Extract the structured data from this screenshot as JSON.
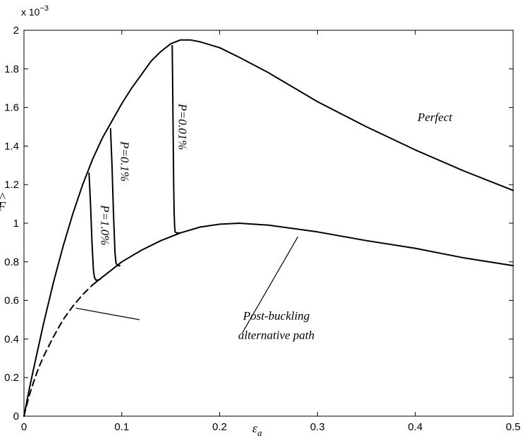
{
  "chart_data": {
    "type": "line",
    "xlabel": "ε",
    "xlabel_sub": "a",
    "ylabel": "F",
    "ylabel_hat": "^",
    "y_multiplier": {
      "base": "x 10",
      "exponent": "−3"
    },
    "xlim": [
      0,
      0.5
    ],
    "ylim": [
      0,
      2
    ],
    "xticks": [
      0,
      0.1,
      0.2,
      0.3,
      0.4,
      0.5
    ],
    "xtick_labels": [
      "0",
      "0.1",
      "0.2",
      "0.3",
      "0.4",
      "0.5"
    ],
    "yticks": [
      0,
      0.2,
      0.4,
      0.6,
      0.8,
      1,
      1.2,
      1.4,
      1.6,
      1.8,
      2
    ],
    "ytick_labels": [
      "0",
      "0.2",
      "0.4",
      "0.6",
      "0.8",
      "1",
      "1.2",
      "1.4",
      "1.6",
      "1.8",
      "2"
    ],
    "grid": false,
    "series": [
      {
        "name": "Perfect",
        "style": "solid",
        "x": [
          0,
          0.005,
          0.01,
          0.02,
          0.03,
          0.04,
          0.05,
          0.06,
          0.07,
          0.08,
          0.09,
          0.1,
          0.11,
          0.12,
          0.13,
          0.14,
          0.15,
          0.16,
          0.17,
          0.18,
          0.2,
          0.22,
          0.25,
          0.3,
          0.35,
          0.4,
          0.45,
          0.5
        ],
        "y": [
          0,
          0.13,
          0.25,
          0.48,
          0.69,
          0.88,
          1.05,
          1.2,
          1.33,
          1.44,
          1.53,
          1.62,
          1.7,
          1.77,
          1.84,
          1.89,
          1.93,
          1.95,
          1.95,
          1.94,
          1.91,
          1.86,
          1.78,
          1.63,
          1.5,
          1.38,
          1.27,
          1.17
        ]
      },
      {
        "name": "Post-buckling alternative path",
        "style": "dashed",
        "x": [
          0,
          0.005,
          0.01,
          0.015,
          0.02,
          0.03,
          0.04,
          0.05,
          0.06,
          0.07
        ],
        "y": [
          0,
          0.1,
          0.18,
          0.25,
          0.31,
          0.41,
          0.5,
          0.57,
          0.63,
          0.68
        ]
      },
      {
        "name": "Post-buckling alternative path",
        "style": "solid",
        "x": [
          0.07,
          0.08,
          0.09,
          0.1,
          0.12,
          0.14,
          0.16,
          0.18,
          0.2,
          0.22,
          0.25,
          0.3,
          0.35,
          0.4,
          0.45,
          0.5
        ],
        "y": [
          0.68,
          0.72,
          0.76,
          0.8,
          0.86,
          0.91,
          0.95,
          0.98,
          0.995,
          1.0,
          0.99,
          0.955,
          0.91,
          0.87,
          0.82,
          0.78
        ]
      },
      {
        "name": "P=1.0%",
        "style": "solid",
        "x": [
          0.0665,
          0.068,
          0.0695,
          0.071,
          0.072,
          0.0735,
          0.075,
          0.078
        ],
        "y": [
          1.26,
          1.1,
          0.9,
          0.76,
          0.72,
          0.705,
          0.705,
          0.71
        ]
      },
      {
        "name": "P=0.1%",
        "style": "solid",
        "x": [
          0.0885,
          0.09,
          0.0915,
          0.093,
          0.094,
          0.0955,
          0.098
        ],
        "y": [
          1.49,
          1.3,
          1.05,
          0.85,
          0.795,
          0.78,
          0.78
        ]
      },
      {
        "name": "P=0.01%",
        "style": "solid",
        "x": [
          0.1515,
          0.152,
          0.1525,
          0.153,
          0.1535,
          0.154,
          0.1545,
          0.156,
          0.159
        ],
        "y": [
          1.92,
          1.7,
          1.45,
          1.2,
          1.05,
          0.98,
          0.955,
          0.95,
          0.95
        ]
      }
    ],
    "annotations": [
      {
        "text": "Perfect",
        "x": 0.42,
        "y": 1.53,
        "rotate": 0
      },
      {
        "text": "P=1.0%",
        "x": 0.079,
        "y": 0.99,
        "rotate": 90
      },
      {
        "text": "P=0.1%",
        "x": 0.099,
        "y": 1.32,
        "rotate": 90
      },
      {
        "text": "P=0.01%",
        "x": 0.158,
        "y": 1.5,
        "rotate": 90
      },
      {
        "text": "Post-buckling",
        "x": 0.258,
        "y": 0.5,
        "rotate": 0
      },
      {
        "text": "alternative path",
        "x": 0.258,
        "y": 0.4,
        "rotate": 0
      }
    ],
    "leader_lines": [
      {
        "from": [
          0.053,
          0.56
        ],
        "to": [
          0.118,
          0.5
        ]
      },
      {
        "from": [
          0.223,
          0.43
        ],
        "to": [
          0.28,
          0.93
        ]
      }
    ]
  }
}
